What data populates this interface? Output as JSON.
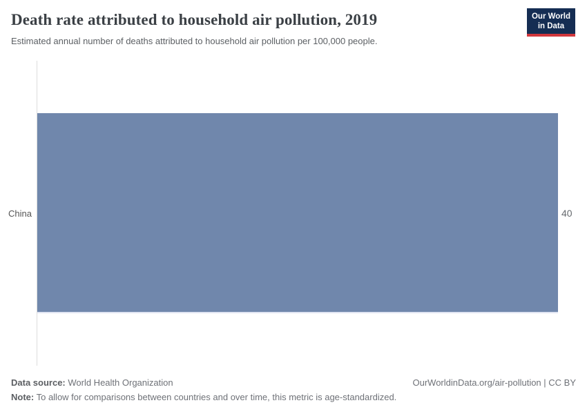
{
  "header": {
    "title": "Death rate attributed to household air pollution, 2019",
    "subtitle": "Estimated annual number of deaths attributed to household air pollution per 100,000 people.",
    "logo": {
      "line1": "Our World",
      "line2": "in Data"
    }
  },
  "chart_data": {
    "type": "bar",
    "orientation": "horizontal",
    "title": "Death rate attributed to household air pollution, 2019",
    "subtitle": "Estimated annual number of deaths attributed to household air pollution per 100,000 people.",
    "categories": [
      "China"
    ],
    "values": [
      40
    ],
    "value_labels": [
      "40"
    ],
    "xlabel": "",
    "ylabel": "",
    "xlim": [
      0,
      40
    ],
    "grid": false,
    "legend": "none",
    "bar_color": "#7087ac"
  },
  "footer": {
    "data_source_label": "Data source:",
    "data_source_text": " World Health Organization",
    "note_label": "Note:",
    "note_text": " To allow for comparisons between countries and over time, this metric is age-standardized.",
    "attribution": "OurWorldinData.org/air-pollution | CC BY"
  },
  "colors": {
    "bar": "#7087ac",
    "bar_bottom_edge": "#e0e4f2",
    "axis_line": "#dcdcdc",
    "title_text": "#3b4045",
    "muted_text": "#6e7177",
    "logo_background": "#152d53",
    "logo_accent": "#d1373c"
  }
}
